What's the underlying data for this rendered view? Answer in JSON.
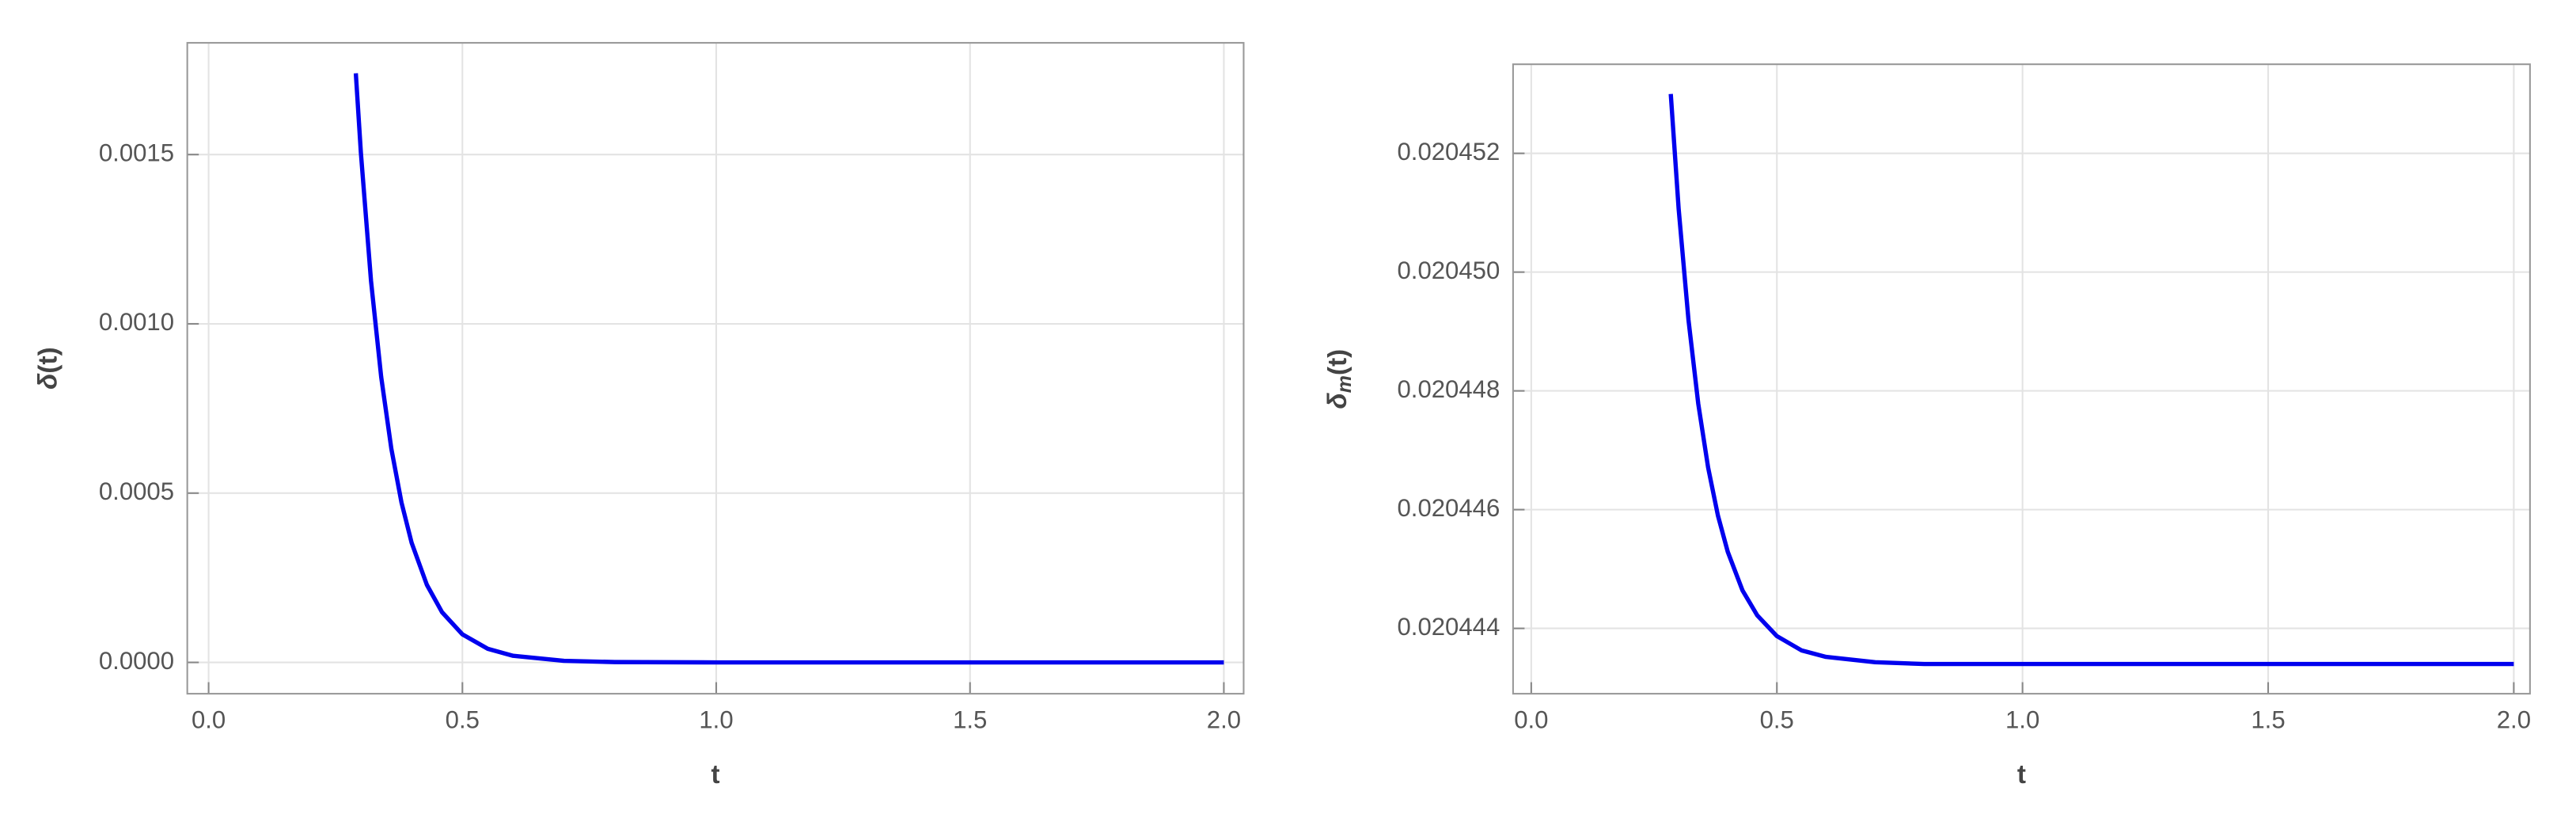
{
  "chart_data": [
    {
      "type": "line",
      "xlabel": "t",
      "ylabel": {
        "text": "δ",
        "tail": "(t)"
      },
      "xlim": [
        -0.042,
        2.039
      ],
      "ylim": [
        -9.25e-05,
        0.00183
      ],
      "xticks": [
        {
          "value": 0,
          "label": "0.0"
        },
        0.5,
        {
          "value": 1,
          "label": "1.0"
        },
        1.5,
        {
          "value": 2,
          "label": "2.0"
        }
      ],
      "yticks": [
        {
          "value": 0,
          "label": "0.0000"
        },
        0.0005,
        {
          "value": 0.001,
          "label": "0.0010"
        },
        0.0015
      ],
      "grid": true,
      "series": [
        {
          "color": "#0000ee",
          "x": [
            0.29,
            0.3,
            0.32,
            0.34,
            0.36,
            0.38,
            0.4,
            0.43,
            0.46,
            0.5,
            0.55,
            0.6,
            0.7,
            0.8,
            1.0,
            1.5,
            2.0
          ],
          "values": [
            0.00174,
            0.001505,
            0.001126,
            0.000843,
            0.000631,
            0.000472,
            0.000353,
            0.000229,
            0.000148,
            8.28e-05,
            4.01e-05,
            1.94e-05,
            4.6e-06,
            1e-06,
            0,
            0,
            0
          ]
        }
      ]
    },
    {
      "type": "line",
      "xlabel": "t",
      "ylabel": {
        "text": "δ",
        "sub": "m",
        "tail": "(t)"
      },
      "xlim": [
        -0.037,
        2.033
      ],
      "ylim": [
        0.0204429,
        0.0204535
      ],
      "xticks": [
        {
          "value": 0,
          "label": "0.0"
        },
        0.5,
        {
          "value": 1,
          "label": "1.0"
        },
        1.5,
        {
          "value": 2,
          "label": "2.0"
        }
      ],
      "yticks": [
        0.020444,
        0.020446,
        0.020448,
        {
          "value": 0.02045,
          "label": "0.020450"
        },
        0.020452
      ],
      "grid": true,
      "series": [
        {
          "color": "#0000ee",
          "x": [
            0.284,
            0.3,
            0.32,
            0.34,
            0.36,
            0.38,
            0.4,
            0.43,
            0.46,
            0.5,
            0.55,
            0.6,
            0.7,
            0.8,
            1.0,
            1.5,
            2.0
          ],
          "values": [
            0.020453,
            0.02045107,
            0.0204492,
            0.02044778,
            0.02044671,
            0.0204459,
            0.02044529,
            0.02044464,
            0.02044422,
            0.02044387,
            0.02044363,
            0.02044352,
            0.02044343,
            0.0204434,
            0.0204434,
            0.0204434,
            0.0204434
          ]
        }
      ]
    }
  ]
}
